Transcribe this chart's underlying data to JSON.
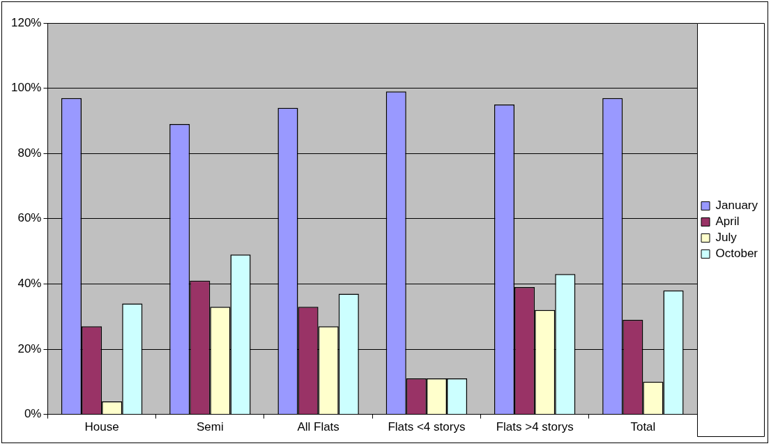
{
  "chart_data": {
    "type": "bar",
    "categories": [
      "House",
      "Semi",
      "All Flats",
      "Flats <4 storys",
      "Flats >4 storys",
      "Total"
    ],
    "series": [
      {
        "name": "January",
        "color": "#9999ff",
        "values": [
          97,
          89,
          94,
          99,
          95,
          97
        ]
      },
      {
        "name": "April",
        "color": "#993366",
        "values": [
          27,
          41,
          33,
          11,
          39,
          29
        ]
      },
      {
        "name": "July",
        "color": "#ffffcc",
        "values": [
          4,
          33,
          27,
          11,
          32,
          10
        ]
      },
      {
        "name": "October",
        "color": "#ccffff",
        "values": [
          34,
          49,
          37,
          11,
          43,
          38
        ]
      }
    ],
    "ylim": [
      0,
      120
    ],
    "yticks": [
      {
        "value": 0,
        "label": "0%"
      },
      {
        "value": 20,
        "label": "20%"
      },
      {
        "value": 40,
        "label": "40%"
      },
      {
        "value": 60,
        "label": "60%"
      },
      {
        "value": 80,
        "label": "80%"
      },
      {
        "value": 100,
        "label": "100%"
      },
      {
        "value": 120,
        "label": "120%"
      }
    ],
    "grid": "y",
    "legend": "right"
  }
}
